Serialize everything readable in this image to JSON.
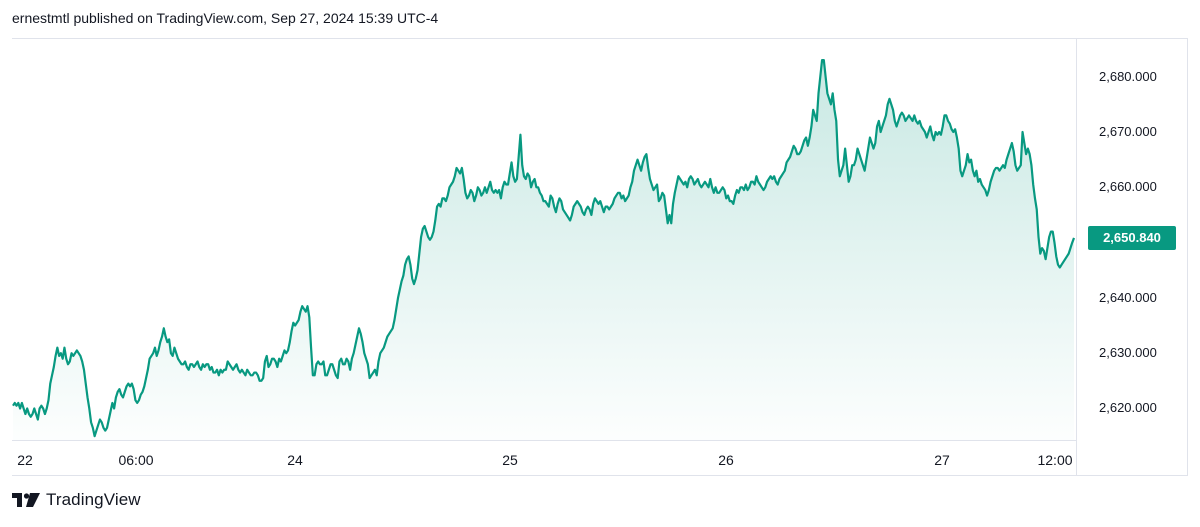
{
  "header": {
    "published_text": "ernestmtl published on TradingView.com, Sep 27, 2024 15:39 UTC-4"
  },
  "footer": {
    "brand": "TradingView",
    "logo_icon": "tradingview-logo-icon"
  },
  "colors": {
    "line": "#089981",
    "fill_top": "#089981",
    "price_tag_bg": "#089981",
    "price_tag_text": "#ffffff",
    "axis_text": "#131722",
    "border": "#e0e3eb"
  },
  "chart_data": {
    "type": "area",
    "x_tick_labels": [
      "22",
      "06:00",
      "24",
      "25",
      "26",
      "27",
      "12:00"
    ],
    "y_tick_labels": [
      "2,680.000",
      "2,670.000",
      "2,660.000",
      "2,650.000",
      "2,640.000",
      "2,630.000",
      "2,620.000"
    ],
    "y_tick_values": [
      2680,
      2670,
      2660,
      2650,
      2640,
      2630,
      2620
    ],
    "ylim": [
      2614.3,
      2687
    ],
    "last_price": "2,650.840",
    "last_value": 2650.84,
    "x_index_range": [
      0,
      530
    ],
    "values": [
      2620.5,
      2621,
      2620.5,
      2621,
      2620,
      2621,
      2620,
      2619,
      2620,
      2619,
      2618.5,
      2619,
      2620,
      2619,
      2618,
      2620,
      2620.5,
      2620,
      2619,
      2620,
      2621.5,
      2624.5,
      2626,
      2627.5,
      2629.5,
      2631,
      2629.5,
      2630,
      2629,
      2631,
      2629,
      2628,
      2628.5,
      2630,
      2629.5,
      2630,
      2630.5,
      2630,
      2629.5,
      2628.5,
      2627,
      2624.5,
      2622,
      2620,
      2617.5,
      2616.5,
      2615,
      2616,
      2617,
      2618,
      2617.5,
      2616.5,
      2616,
      2616.5,
      2618,
      2619.5,
      2621,
      2620,
      2622,
      2623,
      2623.5,
      2622.5,
      2622,
      2623,
      2624,
      2624.5,
      2624,
      2624.5,
      2623.5,
      2621.5,
      2621,
      2621.5,
      2622.5,
      2623,
      2624,
      2625.5,
      2627,
      2629,
      2629.5,
      2630,
      2631,
      2629.5,
      2630.5,
      2632,
      2633,
      2634.5,
      2633,
      2632,
      2632.5,
      2630,
      2629.5,
      2631,
      2630,
      2629,
      2628.5,
      2628,
      2628,
      2628.5,
      2627.5,
      2627,
      2628,
      2628,
      2627.5,
      2628,
      2628.5,
      2627.5,
      2627,
      2628,
      2627.5,
      2628,
      2628,
      2627,
      2627.5,
      2626.5,
      2626.5,
      2627,
      2626,
      2627,
      2626.5,
      2627,
      2627,
      2628.5,
      2628,
      2627.5,
      2627,
      2627.5,
      2628,
      2627,
      2626.5,
      2627,
      2626.5,
      2626,
      2627,
      2626.5,
      2626,
      2626,
      2626.5,
      2626.5,
      2626,
      2625,
      2625,
      2625.5,
      2628.5,
      2629.5,
      2627.5,
      2628,
      2629,
      2629,
      2628.5,
      2627.5,
      2629,
      2628.5,
      2629.5,
      2630.5,
      2630,
      2630.5,
      2632,
      2634,
      2635.5,
      2635,
      2635.5,
      2636,
      2637.5,
      2638.5,
      2638,
      2637.5,
      2638.5,
      2636.5,
      2631,
      2626,
      2626,
      2628,
      2628.5,
      2628,
      2628,
      2628.5,
      2626,
      2626,
      2627,
      2628,
      2628,
      2627,
      2626,
      2625.5,
      2628.5,
      2629,
      2628,
      2628,
      2629,
      2628.5,
      2627,
      2629,
      2630,
      2631.5,
      2633,
      2634.5,
      2633.5,
      2632,
      2630,
      2629,
      2628,
      2625.5,
      2626,
      2626.5,
      2627,
      2626,
      2628.5,
      2630,
      2630.5,
      2631,
      2632,
      2633,
      2633.5,
      2634,
      2634.5,
      2636,
      2638,
      2640,
      2641.5,
      2643,
      2644,
      2646,
      2647,
      2647.5,
      2646,
      2643.5,
      2642.5,
      2643.5,
      2645,
      2648,
      2651,
      2652.5,
      2653,
      2652,
      2651,
      2650.5,
      2651,
      2652,
      2654,
      2656.5,
      2657,
      2656.5,
      2658,
      2658,
      2657.5,
      2658.5,
      2660,
      2660.5,
      2661,
      2662,
      2663.5,
      2663,
      2662.5,
      2663.5,
      2661.5,
      2659,
      2658,
      2658.5,
      2659.5,
      2659,
      2657.5,
      2658.5,
      2660,
      2659.5,
      2658.5,
      2659,
      2660,
      2659,
      2660,
      2661,
      2659.5,
      2659,
      2659.5,
      2659,
      2659.5,
      2658,
      2660,
      2661,
      2660.5,
      2660.5,
      2662.5,
      2664.5,
      2662,
      2661,
      2661.5,
      2665.5,
      2669.5,
      2664,
      2662,
      2661.5,
      2662.5,
      2662,
      2660,
      2661,
      2661.5,
      2660,
      2660,
      2659,
      2658.5,
      2657.5,
      2657.5,
      2657,
      2656.5,
      2658.5,
      2658,
      2656.5,
      2655.5,
      2657,
      2658,
      2657.5,
      2656,
      2655.5,
      2655,
      2654.5,
      2654,
      2655,
      2656.5,
      2657,
      2657.5,
      2657,
      2656.5,
      2655.5,
      2655,
      2656,
      2656.5,
      2656,
      2655,
      2657,
      2658,
      2657.5,
      2657,
      2657.5,
      2656.5,
      2655.5,
      2656.5,
      2656.5,
      2656,
      2656.5,
      2657,
      2658,
      2658.5,
      2659,
      2659,
      2658,
      2658.5,
      2657.5,
      2658,
      2658.5,
      2660,
      2661,
      2663,
      2664,
      2665,
      2664,
      2663,
      2664.5,
      2665.5,
      2666,
      2663.5,
      2661.5,
      2660.5,
      2659.5,
      2660,
      2660.5,
      2657.5,
      2658,
      2659,
      2658.5,
      2656,
      2653.5,
      2655,
      2653.5,
      2657,
      2659,
      2660.5,
      2662,
      2661.5,
      2661,
      2660.5,
      2661,
      2660,
      2661.5,
      2662,
      2661.5,
      2660.5,
      2661,
      2661.5,
      2660.5,
      2660,
      2660.5,
      2661,
      2660.5,
      2660,
      2661.5,
      2660,
      2659,
      2660,
      2659,
      2659,
      2659.5,
      2660,
      2659.5,
      2658,
      2658.5,
      2657.5,
      2657.5,
      2657,
      2658.5,
      2659.5,
      2659,
      2660,
      2660,
      2659.5,
      2660.5,
      2659.5,
      2660,
      2661,
      2661,
      2660.5,
      2662,
      2661,
      2660.5,
      2660,
      2659.5,
      2660,
      2661,
      2661.5,
      2662,
      2661.5,
      2662,
      2661,
      2660.5,
      2661.5,
      2662,
      2662.5,
      2663,
      2664.5,
      2665,
      2665.5,
      2666.5,
      2667.5,
      2667,
      2666,
      2666,
      2666.5,
      2667.5,
      2668.5,
      2669,
      2667.5,
      2669,
      2671,
      2674,
      2673,
      2672,
      2677,
      2680,
      2683,
      2683,
      2680,
      2677,
      2676,
      2675,
      2677,
      2674,
      2672,
      2665,
      2662,
      2663,
      2664,
      2667,
      2664,
      2661,
      2662,
      2664,
      2664,
      2665,
      2667,
      2666,
      2665,
      2664,
      2663,
      2665,
      2667,
      2669,
      2668,
      2667,
      2668,
      2671,
      2672,
      2670,
      2671,
      2672,
      2673,
      2675,
      2676,
      2675,
      2674,
      2672,
      2671,
      2672,
      2673,
      2673.5,
      2673,
      2672,
      2672.5,
      2673,
      2672.5,
      2672,
      2673,
      2672,
      2671.5,
      2672,
      2671,
      2670.5,
      2670,
      2669,
      2670,
      2671,
      2669.5,
      2668.5,
      2670,
      2669.5,
      2670,
      2669.5,
      2671,
      2673,
      2673,
      2672,
      2671.5,
      2670.5,
      2670,
      2670.5,
      2669,
      2667,
      2663,
      2662,
      2663,
      2664,
      2666,
      2664.5,
      2665,
      2663,
      2662,
      2663,
      2661,
      2661.5,
      2660.5,
      2660,
      2659.5,
      2658.5,
      2659.5,
      2661,
      2662,
      2663,
      2663.5,
      2663.5,
      2663,
      2663.5,
      2664,
      2663.5,
      2665,
      2666,
      2667,
      2668,
      2666.5,
      2664,
      2663,
      2663.5,
      2664,
      2670,
      2668,
      2666,
      2667,
      2666,
      2664,
      2660.5,
      2658,
      2656,
      2651,
      2648,
      2649,
      2648.5,
      2647,
      2649,
      2651,
      2652,
      2652,
      2650,
      2647.5,
      2646,
      2645.5,
      2646,
      2646.5,
      2647,
      2647.5,
      2648,
      2649,
      2650,
      2650.84
    ]
  }
}
